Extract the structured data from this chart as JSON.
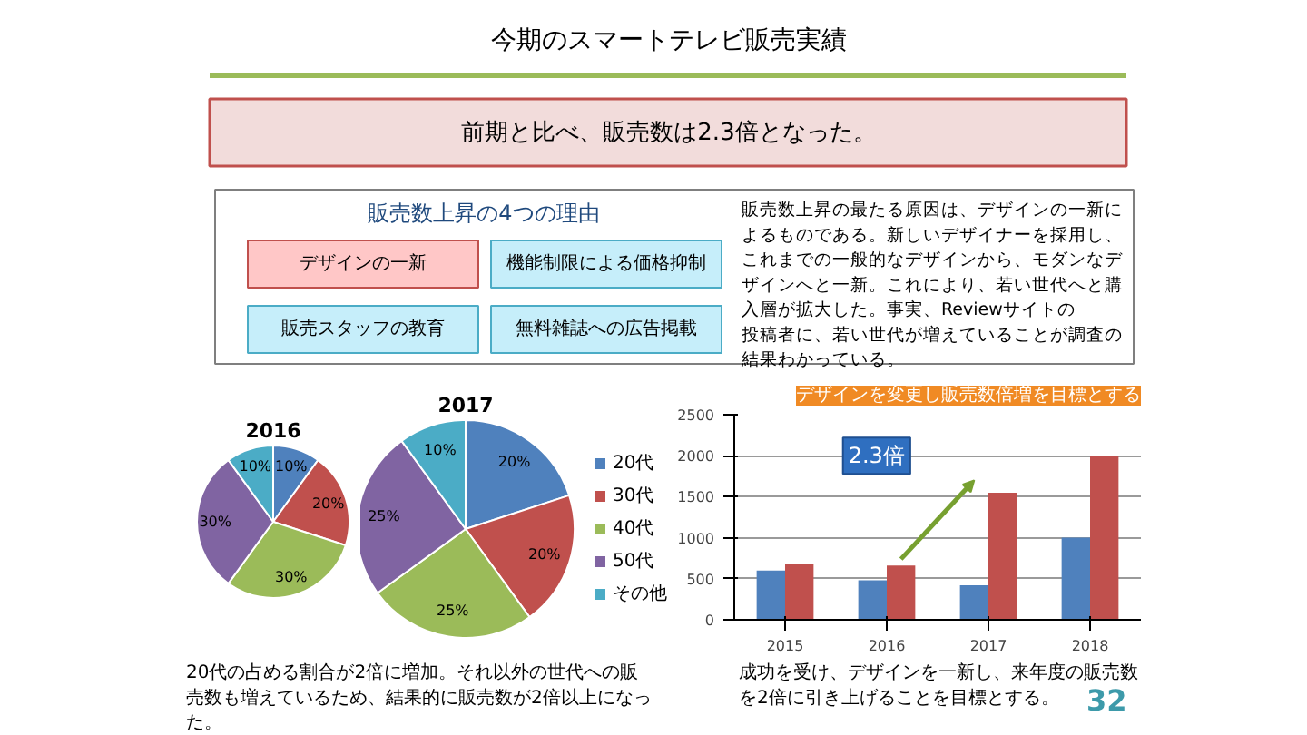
{
  "chart_data": [
    {
      "type": "other",
      "title": "今期のスマートテレビ販売実績",
      "subtitle": "前期と比べ、販売数は2.3倍となった。",
      "annotations": [
        "販売数上昇の4つの理由",
        "デザインの一新",
        "機能制限による価格抑制",
        "販売スタッフの教育",
        "無料雑誌への広告掲載",
        "販売数上昇の最たる原因は、デザインの一新によるものである。新しいデザイナーを採用し、これまでの一般的なデザインから、モダンなデザインへと一新。これにより、若い世代へと購入層が拡大した。事実、Reviewサイトの投稿者に、若い世代が増えていることが調査の結果わかっている。",
        "32"
      ]
    },
    {
      "type": "pie",
      "title": "2016",
      "categories": [
        "20代",
        "30代",
        "40代",
        "50代",
        "その他"
      ],
      "values": [
        10,
        20,
        30,
        30,
        10
      ],
      "colors": [
        "#4f81bd",
        "#c0504d",
        "#9bbb59",
        "#8064a2",
        "#4bacc6"
      ],
      "value_labels": [
        "10%",
        "20%",
        "30%",
        "30%",
        "10%"
      ],
      "legend": "right"
    },
    {
      "type": "pie",
      "title": "2017",
      "categories": [
        null,
        null,
        null,
        null,
        null
      ],
      "values": [
        20,
        20,
        25,
        25,
        10
      ],
      "colors": [
        "#4f81bd",
        "#c0504d",
        "#9bbb59",
        "#8064a2",
        "#4bacc6"
      ],
      "value_labels": [
        "20%",
        "20%",
        "25%",
        "25%",
        "10%"
      ],
      "annotations": [
        "20代の占める割合が2倍に増加。それ以外の世代への販売数も増えているため、結果的に販売数が2倍以上になった。"
      ]
    },
    {
      "type": "bar",
      "categories": [
        "2015",
        "2016",
        "2017",
        "2018"
      ],
      "series": [
        {
          "color": "#4f81bd",
          "values": [
            600,
            480,
            420,
            1000
          ]
        },
        {
          "color": "#c0504d",
          "values": [
            680,
            660,
            1550,
            2000
          ]
        }
      ],
      "ylim": [
        0,
        2500
      ],
      "yticks": [
        0,
        500,
        1000,
        1500,
        2000,
        2500
      ],
      "grid": "y",
      "annotations": [
        "2.3倍",
        "デザインを変更し販売数倍増を目標とする",
        "成功を受け、デザインを一新し、来年度の販売数を2倍に引き上げることを目標とする。"
      ]
    }
  ]
}
